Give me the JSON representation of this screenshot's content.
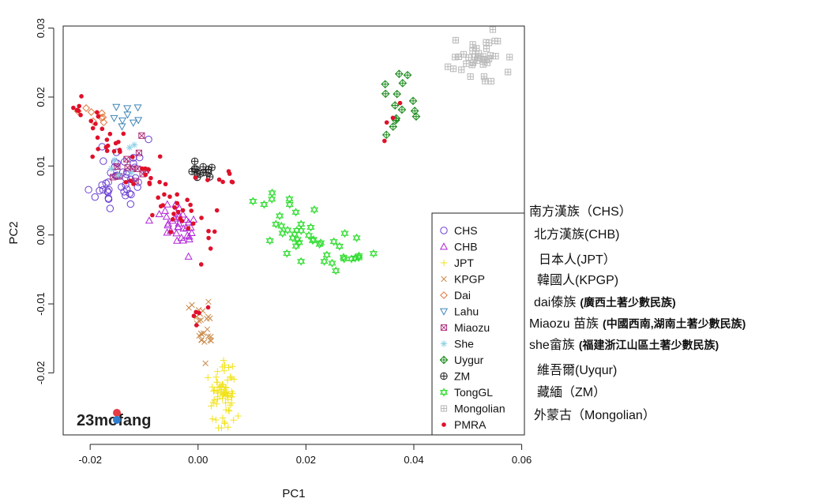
{
  "chart_data": {
    "type": "scatter",
    "xlabel": "PC1",
    "ylabel": "PC2",
    "xlim": [
      -0.025,
      0.0605
    ],
    "ylim": [
      -0.029,
      0.0303
    ],
    "xticks": [
      "-0.02",
      "0.00",
      "0.02",
      "0.04",
      "0.06"
    ],
    "yticks": [
      "-0.02",
      "-0.01",
      "0.00",
      "0.01",
      "0.02",
      "0.03"
    ],
    "legend_position": "bottom-right",
    "watermark": "23mofang",
    "series": [
      {
        "name": "CHS",
        "marker": "circle",
        "color": "#6a3fd0"
      },
      {
        "name": "CHB",
        "marker": "triangle-up",
        "color": "#b023d6"
      },
      {
        "name": "JPT",
        "marker": "plus",
        "color": "#f2e31a"
      },
      {
        "name": "KPGP",
        "marker": "x",
        "color": "#c98a4a"
      },
      {
        "name": "Dai",
        "marker": "diamond",
        "color": "#e2763a"
      },
      {
        "name": "Lahu",
        "marker": "triangle-down",
        "color": "#3f86b6"
      },
      {
        "name": "Miaozu",
        "marker": "square-x",
        "color": "#b0307a"
      },
      {
        "name": "She",
        "marker": "asterisk",
        "color": "#8fd0e6"
      },
      {
        "name": "Uygur",
        "marker": "diamond-plus",
        "color": "#1a8a1a"
      },
      {
        "name": "ZM",
        "marker": "circle-plus",
        "color": "#222222"
      },
      {
        "name": "TongGL",
        "marker": "star-of-david",
        "color": "#33dd33"
      },
      {
        "name": "Mongolian",
        "marker": "square-plus",
        "color": "#b8b8b8"
      },
      {
        "name": "PMRA",
        "marker": "dot",
        "color": "#e0102a"
      }
    ],
    "clusters": [
      {
        "series": "CHS",
        "cx": -0.0145,
        "cy": 0.0085,
        "sx": 0.0023,
        "sy": 0.0027,
        "n": 45,
        "seed": 11
      },
      {
        "series": "CHB",
        "cx": -0.0032,
        "cy": 0.0015,
        "sx": 0.0022,
        "sy": 0.0015,
        "n": 34,
        "seed": 12
      },
      {
        "series": "JPT",
        "cx": 0.0046,
        "cy": -0.0232,
        "sx": 0.0012,
        "sy": 0.0024,
        "n": 70,
        "seed": 13
      },
      {
        "series": "KPGP",
        "cx": 0.0015,
        "cy": -0.0128,
        "sx": 0.0011,
        "sy": 0.0018,
        "n": 26,
        "seed": 14
      },
      {
        "series": "Dai",
        "cx": -0.0185,
        "cy": 0.0175,
        "sx": 0.0012,
        "sy": 0.0009,
        "n": 8,
        "seed": 15
      },
      {
        "series": "Lahu",
        "cx": -0.0128,
        "cy": 0.0175,
        "sx": 0.0013,
        "sy": 0.0011,
        "n": 9,
        "seed": 16
      },
      {
        "series": "Miaozu",
        "cx": -0.0125,
        "cy": 0.0105,
        "sx": 0.0018,
        "sy": 0.0025,
        "n": 12,
        "seed": 17
      },
      {
        "series": "She",
        "cx": -0.0145,
        "cy": 0.0105,
        "sx": 0.0015,
        "sy": 0.0015,
        "n": 6,
        "seed": 18
      },
      {
        "series": "Uygur",
        "cx": 0.0365,
        "cy": 0.0205,
        "sx": 0.002,
        "sy": 0.0025,
        "n": 15,
        "seed": 19
      },
      {
        "series": "ZM",
        "cx": 0.0005,
        "cy": 0.0093,
        "sx": 0.0012,
        "sy": 0.0009,
        "n": 13,
        "seed": 20
      },
      {
        "series": "TongGL",
        "cx": 0.017,
        "cy": -0.0005,
        "sx": 0.0065,
        "sy": 0.0025,
        "n": 45,
        "seed": 21
      },
      {
        "series": "Mongolian",
        "cx": 0.0515,
        "cy": 0.0255,
        "sx": 0.0028,
        "sy": 0.0017,
        "n": 38,
        "seed": 22
      },
      {
        "series": "PMRA",
        "cx": -0.012,
        "cy": 0.0095,
        "sx": 0.0068,
        "sy": 0.0045,
        "n": 70,
        "seed": 23
      },
      {
        "series": "PMRA",
        "cx": 0.0365,
        "cy": 0.018,
        "sx": 0.0012,
        "sy": 0.0028,
        "n": 4,
        "seed": 24
      },
      {
        "series": "PMRA",
        "cx": 0.0005,
        "cy": -0.0115,
        "sx": 0.0008,
        "sy": 0.0008,
        "n": 5,
        "seed": 25
      },
      {
        "series": "PMRA",
        "cx": 0.0045,
        "cy": 0.0085,
        "sx": 0.0025,
        "sy": 0.0008,
        "n": 8,
        "seed": 26
      }
    ],
    "annotations": [
      {
        "main": "南方漢族（CHS）",
        "bold": ""
      },
      {
        "main": "北方漢族(CHB)",
        "bold": ""
      },
      {
        "main": "日本人(JPT）",
        "bold": ""
      },
      {
        "main": "韓國人(KPGP)",
        "bold": ""
      },
      {
        "main": "dai傣族",
        "bold": "(廣西土著少數民族)"
      },
      {
        "main": "Miaozu 苗族",
        "bold": "(中國西南,湖南土著少數民族)"
      },
      {
        "main": "she畲族",
        "bold": "(福建浙江山區土著少數民族)"
      },
      {
        "main": "維吾爾(Uyqur)",
        "bold": ""
      },
      {
        "main": "藏緬（ZM）",
        "bold": ""
      },
      {
        "main": "外蒙古（Mongolian）",
        "bold": ""
      }
    ]
  }
}
